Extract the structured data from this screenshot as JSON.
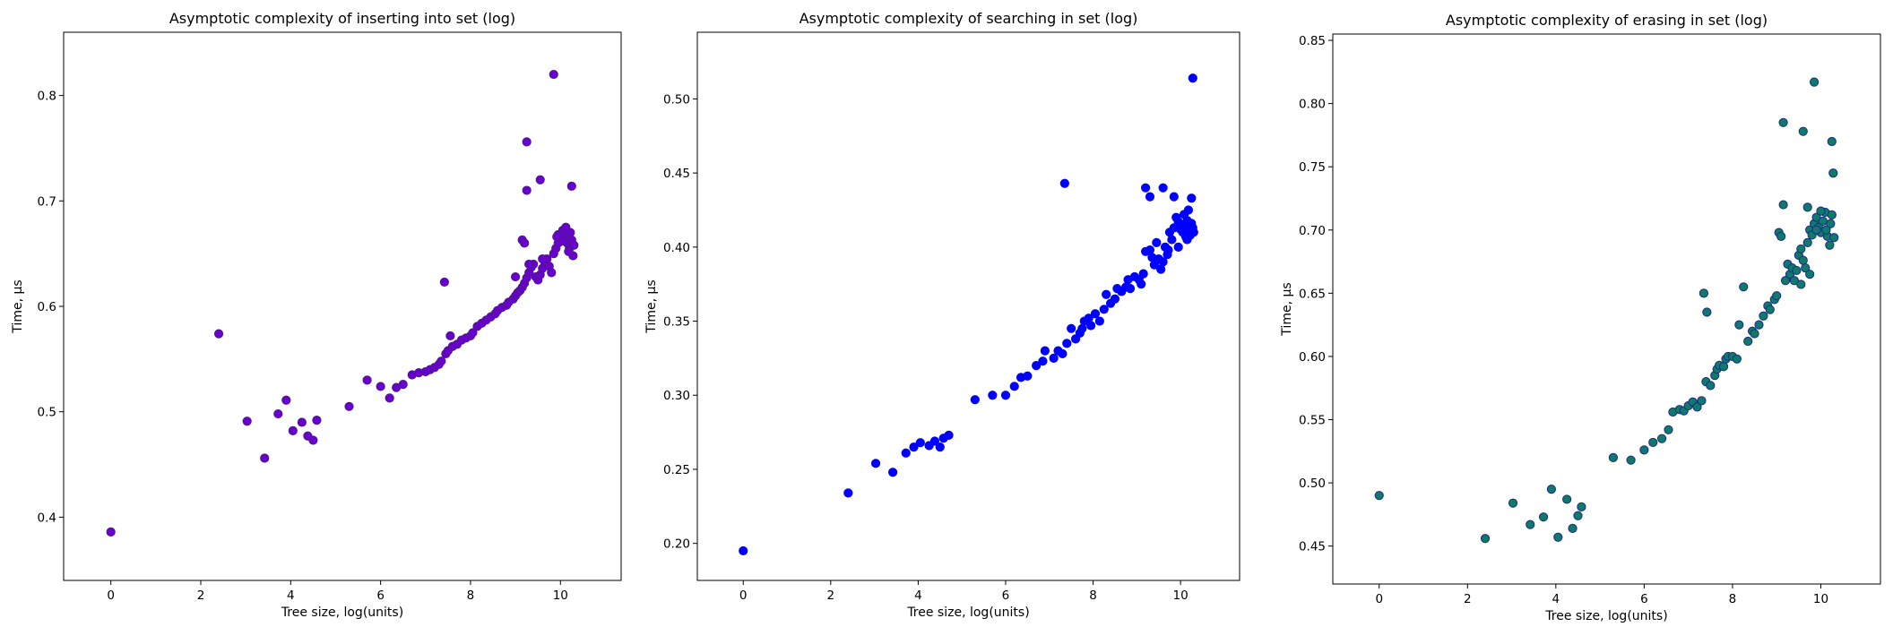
{
  "chart_data": [
    {
      "type": "scatter",
      "title": "Asymptotic complexity of inserting into set (log)",
      "xlabel": "Tree size, log(units)",
      "ylabel": "Time, μs",
      "xlim": [
        -1.05,
        11.35
      ],
      "ylim": [
        0.34,
        0.86
      ],
      "xticks": [
        0,
        2,
        4,
        6,
        8,
        10
      ],
      "yticks": [
        0.4,
        0.5,
        0.6,
        0.7,
        0.8
      ],
      "tick_decimals": 1,
      "marker_fill": "#6a00d0",
      "marker_edge": "#4a1a8a",
      "points": [
        [
          0.0,
          0.386
        ],
        [
          2.4,
          0.574
        ],
        [
          3.03,
          0.491
        ],
        [
          3.42,
          0.456
        ],
        [
          3.72,
          0.498
        ],
        [
          3.9,
          0.511
        ],
        [
          4.05,
          0.482
        ],
        [
          4.25,
          0.49
        ],
        [
          4.38,
          0.477
        ],
        [
          4.5,
          0.473
        ],
        [
          4.58,
          0.492
        ],
        [
          5.3,
          0.505
        ],
        [
          5.7,
          0.53
        ],
        [
          6.0,
          0.524
        ],
        [
          6.2,
          0.513
        ],
        [
          6.35,
          0.523
        ],
        [
          6.5,
          0.526
        ],
        [
          6.7,
          0.535
        ],
        [
          6.85,
          0.537
        ],
        [
          7.0,
          0.538
        ],
        [
          7.1,
          0.54
        ],
        [
          7.2,
          0.542
        ],
        [
          7.3,
          0.545
        ],
        [
          7.35,
          0.548
        ],
        [
          7.45,
          0.555
        ],
        [
          7.42,
          0.623
        ],
        [
          7.5,
          0.558
        ],
        [
          7.55,
          0.572
        ],
        [
          7.6,
          0.562
        ],
        [
          7.7,
          0.564
        ],
        [
          7.8,
          0.568
        ],
        [
          7.9,
          0.57
        ],
        [
          8.0,
          0.572
        ],
        [
          8.05,
          0.575
        ],
        [
          8.15,
          0.581
        ],
        [
          8.25,
          0.584
        ],
        [
          8.35,
          0.587
        ],
        [
          8.45,
          0.59
        ],
        [
          8.55,
          0.593
        ],
        [
          8.6,
          0.596
        ],
        [
          8.7,
          0.599
        ],
        [
          8.8,
          0.601
        ],
        [
          8.85,
          0.604
        ],
        [
          8.95,
          0.607
        ],
        [
          9.0,
          0.61
        ],
        [
          9.05,
          0.613
        ],
        [
          9.1,
          0.615
        ],
        [
          9.15,
          0.618
        ],
        [
          9.0,
          0.628
        ],
        [
          9.2,
          0.622
        ],
        [
          9.25,
          0.627
        ],
        [
          9.3,
          0.632
        ],
        [
          9.35,
          0.637
        ],
        [
          9.4,
          0.64
        ],
        [
          9.45,
          0.628
        ],
        [
          9.5,
          0.625
        ],
        [
          9.55,
          0.63
        ],
        [
          9.6,
          0.636
        ],
        [
          9.65,
          0.642
        ],
        [
          9.7,
          0.645
        ],
        [
          9.75,
          0.638
        ],
        [
          9.8,
          0.632
        ],
        [
          9.85,
          0.65
        ],
        [
          9.9,
          0.655
        ],
        [
          9.95,
          0.66
        ],
        [
          10.0,
          0.665
        ],
        [
          10.05,
          0.672
        ],
        [
          10.1,
          0.668
        ],
        [
          10.15,
          0.66
        ],
        [
          10.2,
          0.655
        ],
        [
          10.25,
          0.663
        ],
        [
          10.3,
          0.658
        ],
        [
          10.22,
          0.67
        ],
        [
          10.28,
          0.648
        ],
        [
          9.15,
          0.663
        ],
        [
          9.2,
          0.66
        ],
        [
          9.25,
          0.756
        ],
        [
          9.25,
          0.71
        ],
        [
          9.55,
          0.72
        ],
        [
          9.85,
          0.82
        ],
        [
          10.25,
          0.714
        ],
        [
          9.95,
          0.668
        ],
        [
          10.05,
          0.662
        ],
        [
          10.12,
          0.675
        ],
        [
          9.92,
          0.666
        ],
        [
          10.18,
          0.652
        ],
        [
          9.6,
          0.645
        ],
        [
          9.3,
          0.64
        ]
      ]
    },
    {
      "type": "scatter",
      "title": "Asymptotic complexity of searching in set (log)",
      "xlabel": "Tree size, log(units)",
      "ylabel": "Time, μs",
      "xlim": [
        -1.05,
        11.35
      ],
      "ylim": [
        0.175,
        0.545
      ],
      "xticks": [
        0,
        2,
        4,
        6,
        8,
        10
      ],
      "yticks": [
        0.2,
        0.25,
        0.3,
        0.35,
        0.4,
        0.45,
        0.5
      ],
      "tick_decimals": 2,
      "marker_fill": "#0000ff",
      "marker_edge": "#0000ff",
      "points": [
        [
          0.0,
          0.195
        ],
        [
          2.4,
          0.234
        ],
        [
          3.03,
          0.254
        ],
        [
          3.42,
          0.248
        ],
        [
          3.72,
          0.261
        ],
        [
          3.9,
          0.265
        ],
        [
          4.05,
          0.268
        ],
        [
          4.25,
          0.266
        ],
        [
          4.38,
          0.269
        ],
        [
          4.5,
          0.265
        ],
        [
          4.58,
          0.271
        ],
        [
          4.7,
          0.273
        ],
        [
          5.3,
          0.297
        ],
        [
          5.7,
          0.3
        ],
        [
          6.0,
          0.3
        ],
        [
          6.2,
          0.306
        ],
        [
          6.35,
          0.312
        ],
        [
          6.5,
          0.313
        ],
        [
          6.7,
          0.32
        ],
        [
          6.85,
          0.323
        ],
        [
          6.9,
          0.33
        ],
        [
          7.1,
          0.325
        ],
        [
          7.2,
          0.33
        ],
        [
          7.3,
          0.328
        ],
        [
          7.4,
          0.335
        ],
        [
          7.35,
          0.443
        ],
        [
          7.5,
          0.345
        ],
        [
          7.6,
          0.338
        ],
        [
          7.7,
          0.342
        ],
        [
          7.75,
          0.345
        ],
        [
          7.8,
          0.35
        ],
        [
          7.9,
          0.352
        ],
        [
          7.95,
          0.347
        ],
        [
          8.05,
          0.355
        ],
        [
          8.15,
          0.35
        ],
        [
          8.25,
          0.358
        ],
        [
          8.3,
          0.368
        ],
        [
          8.4,
          0.362
        ],
        [
          8.5,
          0.365
        ],
        [
          8.55,
          0.372
        ],
        [
          8.65,
          0.37
        ],
        [
          8.75,
          0.373
        ],
        [
          8.8,
          0.378
        ],
        [
          8.85,
          0.372
        ],
        [
          8.95,
          0.38
        ],
        [
          9.05,
          0.378
        ],
        [
          9.1,
          0.375
        ],
        [
          9.15,
          0.382
        ],
        [
          9.2,
          0.397
        ],
        [
          9.3,
          0.398
        ],
        [
          9.35,
          0.393
        ],
        [
          9.4,
          0.388
        ],
        [
          9.45,
          0.403
        ],
        [
          9.5,
          0.392
        ],
        [
          9.55,
          0.385
        ],
        [
          9.6,
          0.39
        ],
        [
          9.65,
          0.4
        ],
        [
          9.7,
          0.395
        ],
        [
          9.75,
          0.41
        ],
        [
          9.8,
          0.405
        ],
        [
          9.85,
          0.413
        ],
        [
          9.9,
          0.42
        ],
        [
          9.95,
          0.417
        ],
        [
          10.0,
          0.412
        ],
        [
          10.05,
          0.41
        ],
        [
          10.1,
          0.415
        ],
        [
          10.15,
          0.418
        ],
        [
          10.2,
          0.412
        ],
        [
          10.25,
          0.416
        ],
        [
          10.3,
          0.41
        ],
        [
          10.22,
          0.408
        ],
        [
          10.28,
          0.413
        ],
        [
          9.2,
          0.44
        ],
        [
          9.3,
          0.434
        ],
        [
          9.6,
          0.44
        ],
        [
          9.85,
          0.434
        ],
        [
          10.25,
          0.433
        ],
        [
          10.28,
          0.514
        ],
        [
          10.18,
          0.425
        ],
        [
          10.12,
          0.407
        ],
        [
          9.95,
          0.4
        ],
        [
          10.08,
          0.422
        ],
        [
          9.72,
          0.398
        ],
        [
          10.15,
          0.405
        ]
      ]
    },
    {
      "type": "scatter",
      "title": "Asymptotic complexity of erasing in set (log)",
      "xlabel": "Tree size, log(units)",
      "ylabel": "Time, μs",
      "xlim": [
        -1.05,
        11.35
      ],
      "ylim": [
        0.42,
        0.855
      ],
      "xticks": [
        0,
        2,
        4,
        6,
        8,
        10
      ],
      "yticks": [
        0.45,
        0.5,
        0.55,
        0.6,
        0.65,
        0.7,
        0.75,
        0.8,
        0.85
      ],
      "tick_decimals": 2,
      "marker_fill": "#0f7a6a",
      "marker_edge": "#1a2a8a",
      "points": [
        [
          0.0,
          0.49
        ],
        [
          2.4,
          0.456
        ],
        [
          3.03,
          0.484
        ],
        [
          3.42,
          0.467
        ],
        [
          3.72,
          0.473
        ],
        [
          3.9,
          0.495
        ],
        [
          4.05,
          0.457
        ],
        [
          4.25,
          0.487
        ],
        [
          4.38,
          0.464
        ],
        [
          4.5,
          0.474
        ],
        [
          4.58,
          0.481
        ],
        [
          5.3,
          0.52
        ],
        [
          5.7,
          0.518
        ],
        [
          6.0,
          0.526
        ],
        [
          6.2,
          0.532
        ],
        [
          6.4,
          0.535
        ],
        [
          6.55,
          0.542
        ],
        [
          6.65,
          0.556
        ],
        [
          6.8,
          0.558
        ],
        [
          6.9,
          0.557
        ],
        [
          7.0,
          0.561
        ],
        [
          7.1,
          0.564
        ],
        [
          7.2,
          0.56
        ],
        [
          7.3,
          0.565
        ],
        [
          7.4,
          0.58
        ],
        [
          7.35,
          0.65
        ],
        [
          7.42,
          0.635
        ],
        [
          7.5,
          0.577
        ],
        [
          7.6,
          0.585
        ],
        [
          7.65,
          0.59
        ],
        [
          7.7,
          0.593
        ],
        [
          7.8,
          0.592
        ],
        [
          7.85,
          0.598
        ],
        [
          7.9,
          0.6
        ],
        [
          8.0,
          0.6
        ],
        [
          8.1,
          0.598
        ],
        [
          8.15,
          0.625
        ],
        [
          8.25,
          0.655
        ],
        [
          8.35,
          0.612
        ],
        [
          8.45,
          0.62
        ],
        [
          8.5,
          0.618
        ],
        [
          8.6,
          0.625
        ],
        [
          8.7,
          0.632
        ],
        [
          8.8,
          0.64
        ],
        [
          8.85,
          0.637
        ],
        [
          8.95,
          0.645
        ],
        [
          9.0,
          0.648
        ],
        [
          9.05,
          0.698
        ],
        [
          9.1,
          0.695
        ],
        [
          9.15,
          0.72
        ],
        [
          9.2,
          0.66
        ],
        [
          9.25,
          0.673
        ],
        [
          9.3,
          0.665
        ],
        [
          9.35,
          0.67
        ],
        [
          9.4,
          0.66
        ],
        [
          9.45,
          0.668
        ],
        [
          9.5,
          0.68
        ],
        [
          9.55,
          0.685
        ],
        [
          9.6,
          0.676
        ],
        [
          9.65,
          0.67
        ],
        [
          9.7,
          0.69
        ],
        [
          9.75,
          0.7
        ],
        [
          9.8,
          0.696
        ],
        [
          9.85,
          0.705
        ],
        [
          9.9,
          0.71
        ],
        [
          9.95,
          0.702
        ],
        [
          10.0,
          0.698
        ],
        [
          10.05,
          0.707
        ],
        [
          10.1,
          0.714
        ],
        [
          10.15,
          0.695
        ],
        [
          10.2,
          0.688
        ],
        [
          10.25,
          0.712
        ],
        [
          10.3,
          0.694
        ],
        [
          10.22,
          0.705
        ],
        [
          9.15,
          0.785
        ],
        [
          9.6,
          0.778
        ],
        [
          9.85,
          0.817
        ],
        [
          10.25,
          0.77
        ],
        [
          10.28,
          0.745
        ],
        [
          9.55,
          0.657
        ],
        [
          9.7,
          0.718
        ],
        [
          10.0,
          0.715
        ],
        [
          9.9,
          0.7
        ],
        [
          10.12,
          0.7
        ],
        [
          9.75,
          0.665
        ]
      ]
    }
  ]
}
